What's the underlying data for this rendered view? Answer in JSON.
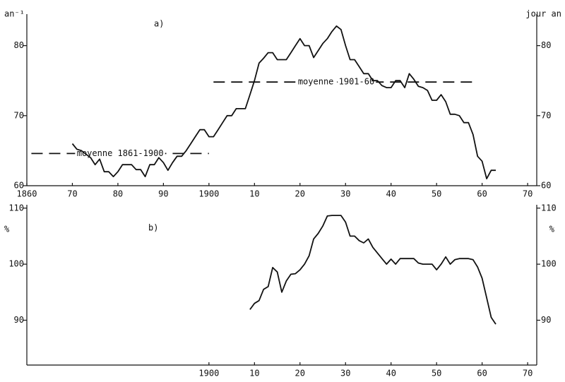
{
  "chart_data": [
    {
      "type": "line",
      "panel_label": "a)",
      "y_label": "an⁻¹",
      "y2_label": "jour an",
      "x": [
        1870,
        1871,
        1872,
        1873,
        1874,
        1875,
        1876,
        1877,
        1878,
        1879,
        1880,
        1881,
        1882,
        1883,
        1884,
        1885,
        1886,
        1887,
        1888,
        1889,
        1890,
        1891,
        1892,
        1893,
        1894,
        1895,
        1896,
        1897,
        1898,
        1899,
        1900,
        1901,
        1902,
        1903,
        1904,
        1905,
        1906,
        1907,
        1908,
        1909,
        1910,
        1911,
        1912,
        1913,
        1914,
        1915,
        1916,
        1917,
        1918,
        1919,
        1920,
        1921,
        1922,
        1923,
        1924,
        1925,
        1926,
        1927,
        1928,
        1929,
        1930,
        1931,
        1932,
        1933,
        1934,
        1935,
        1936,
        1937,
        1938,
        1939,
        1940,
        1941,
        1942,
        1943,
        1944,
        1945,
        1946,
        1947,
        1948,
        1949,
        1950,
        1951,
        1952,
        1953,
        1954,
        1955,
        1956,
        1957,
        1958,
        1959,
        1960,
        1961,
        1962,
        1963
      ],
      "series": [
        {
          "color": "#111111",
          "values": [
            66,
            65.2,
            65,
            64.5,
            64,
            63,
            63.8,
            62,
            62,
            61.3,
            62,
            63,
            63,
            63,
            62.3,
            62.3,
            61.3,
            63,
            63,
            64,
            63.3,
            62.2,
            63.3,
            64.2,
            64.2,
            65,
            66,
            67,
            68,
            68,
            67,
            67,
            68,
            69,
            70,
            70,
            71,
            71,
            71,
            73,
            75,
            77.5,
            78.2,
            79,
            79,
            78,
            78,
            78,
            79,
            80,
            81,
            80,
            80,
            78.3,
            79.3,
            80.3,
            81,
            82,
            82.8,
            82.3,
            80,
            78,
            78,
            77,
            76,
            76,
            75,
            75,
            74.3,
            74,
            74,
            75,
            75,
            74,
            76,
            75.2,
            74.2,
            74,
            73.6,
            72.2,
            72.2,
            73,
            72,
            70.2,
            70.2,
            70,
            69,
            69,
            67.3,
            64.2,
            63.5,
            61,
            62.2,
            62.2
          ]
        }
      ],
      "reference_lines": [
        {
          "label": "moyenne 1861-1900",
          "value": 64.6,
          "x": [
            1861,
            1900
          ]
        },
        {
          "label": "moyenne 1901-60",
          "value": 74.8,
          "x": [
            1901,
            1958
          ]
        }
      ],
      "xlim": [
        1860,
        1972
      ],
      "xticks": [
        1860,
        {
          "value": 1870,
          "label": "70"
        },
        {
          "value": 1880,
          "label": "80"
        },
        {
          "value": 1890,
          "label": "90"
        },
        1900,
        {
          "value": 1910,
          "label": "10"
        },
        {
          "value": 1920,
          "label": "20"
        },
        {
          "value": 1930,
          "label": "30"
        },
        {
          "value": 1940,
          "label": "40"
        },
        {
          "value": 1950,
          "label": "50"
        },
        {
          "value": 1960,
          "label": "60"
        },
        {
          "value": 1970,
          "label": "70"
        }
      ],
      "ylim": [
        60,
        84.5
      ],
      "yticks": [
        60,
        70,
        80
      ]
    },
    {
      "type": "line",
      "panel_label": "b)",
      "y_label": "%",
      "y2_label": "%",
      "x": [
        1909,
        1910,
        1911,
        1912,
        1913,
        1914,
        1915,
        1916,
        1917,
        1918,
        1919,
        1920,
        1921,
        1922,
        1923,
        1924,
        1925,
        1926,
        1927,
        1928,
        1929,
        1930,
        1931,
        1932,
        1933,
        1934,
        1935,
        1936,
        1937,
        1938,
        1939,
        1940,
        1941,
        1942,
        1943,
        1944,
        1945,
        1946,
        1947,
        1948,
        1949,
        1950,
        1951,
        1952,
        1953,
        1954,
        1955,
        1956,
        1957,
        1958,
        1959,
        1960,
        1961,
        1962,
        1963
      ],
      "series": [
        {
          "color": "#111111",
          "values": [
            91.9,
            93,
            93.5,
            95.5,
            96,
            99.4,
            98.6,
            95,
            97,
            98.2,
            98.3,
            99,
            100,
            101.5,
            104.5,
            105.5,
            106.8,
            108.6,
            108.7,
            108.7,
            108.7,
            107.5,
            105,
            105,
            104.2,
            103.8,
            104.5,
            103,
            102,
            101,
            100,
            100.9,
            100,
            101,
            101,
            101,
            101,
            100.2,
            100,
            100,
            100,
            99,
            100,
            101.3,
            100,
            100.8,
            101,
            101,
            101,
            100.8,
            99.5,
            97.5,
            94,
            90.5,
            89.3
          ]
        }
      ],
      "xlim": [
        1860,
        1972
      ],
      "xticks": [
        1900,
        {
          "value": 1910,
          "label": "10"
        },
        {
          "value": 1920,
          "label": "20"
        },
        {
          "value": 1930,
          "label": "30"
        },
        {
          "value": 1940,
          "label": "40"
        },
        {
          "value": 1950,
          "label": "50"
        },
        {
          "value": 1960,
          "label": "60"
        },
        {
          "value": 1970,
          "label": "70"
        }
      ],
      "ylim": [
        82,
        110.6
      ],
      "yticks": [
        90,
        100,
        110
      ]
    }
  ]
}
